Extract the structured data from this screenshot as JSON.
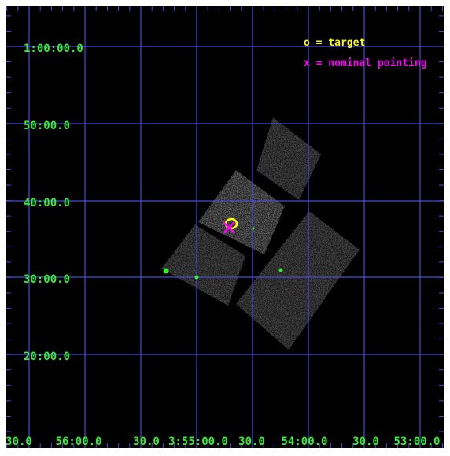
{
  "legend": {
    "target": "o = target",
    "pointing": "x = nominal pointing"
  },
  "axes": {
    "dec_labels": [
      "1:00:00.0",
      "50:00.0",
      "40:00.0",
      "30:00.0",
      "20:00.0"
    ],
    "ra_labels": [
      "30.0",
      "56:00.0",
      "30.0",
      "3:55:00.0",
      "30.0",
      "54:00.0",
      "30.0",
      "53:00.0"
    ]
  },
  "markers": {
    "target_symbol": "o",
    "pointing_symbol": "×"
  },
  "colors": {
    "background": "#000000",
    "grid": "#4a4ad8",
    "label": "#33ee33",
    "target": "#ffff00",
    "pointing": "#ff00ff",
    "source": "#33ee33",
    "chip": "#9a9a9a",
    "chip_bright": "#c8c8c8"
  }
}
